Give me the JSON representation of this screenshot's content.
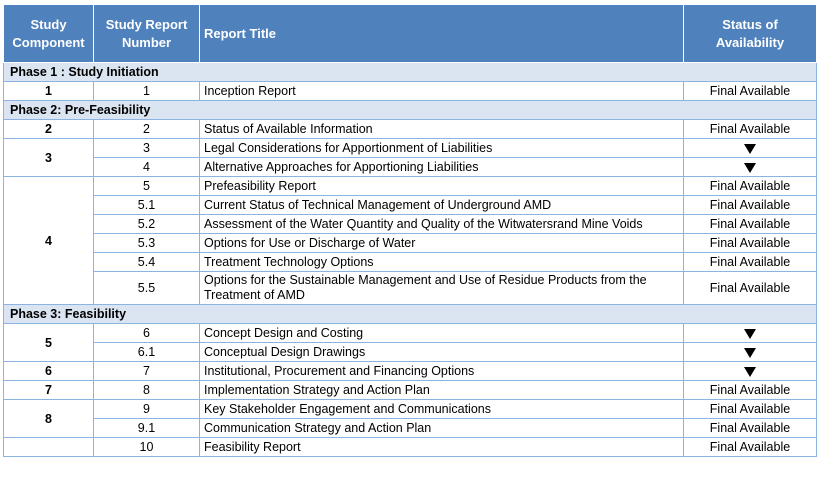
{
  "header": {
    "study_component": "Study Component",
    "study_report_number": "Study Report Number",
    "report_title": "Report Title",
    "status": "Status of Availability"
  },
  "phases": [
    {
      "label": "Phase 1 : Study Initiation",
      "groups": [
        {
          "component": "1",
          "rows": [
            {
              "number": "1",
              "title": "Inception Report",
              "status": "Final Available"
            }
          ]
        }
      ]
    },
    {
      "label": "Phase 2: Pre-Feasibility",
      "groups": [
        {
          "component": "2",
          "rows": [
            {
              "number": "2",
              "title": "Status of Available Information",
              "status": "Final Available"
            }
          ]
        },
        {
          "component": "3",
          "rows": [
            {
              "number": "3",
              "title": "Legal Considerations for Apportionment of Liabilities",
              "status": "",
              "status_icon": "down-triangle-icon"
            },
            {
              "number": "4",
              "title": "Alternative Approaches for Apportioning Liabilities",
              "status": "",
              "status_icon": "down-triangle-icon"
            }
          ]
        },
        {
          "component": "4",
          "rows": [
            {
              "number": "5",
              "title": "Prefeasibility Report",
              "status": "Final Available"
            },
            {
              "number": "5.1",
              "title": "Current Status of Technical Management of Underground AMD",
              "status": "Final Available"
            },
            {
              "number": "5.2",
              "title": "Assessment of the Water Quantity and Quality of the Witwatersrand Mine Voids",
              "status": "Final Available"
            },
            {
              "number": "5.3",
              "title": "Options for Use or Discharge of Water",
              "status": "Final Available"
            },
            {
              "number": "5.4",
              "title": "Treatment Technology Options",
              "status": "Final Available"
            },
            {
              "number": "5.5",
              "title": "Options for the Sustainable Management and Use of Residue Products from the Treatment of AMD",
              "status": "Final Available"
            }
          ]
        }
      ]
    },
    {
      "label": "Phase 3: Feasibility",
      "groups": [
        {
          "component": "5",
          "rows": [
            {
              "number": "6",
              "title": "Concept Design and Costing",
              "status": "",
              "status_icon": "down-triangle-icon"
            },
            {
              "number": "6.1",
              "title": "Conceptual Design Drawings",
              "status": "",
              "status_icon": "down-triangle-icon"
            }
          ]
        },
        {
          "component": "6",
          "rows": [
            {
              "number": "7",
              "title": "Institutional, Procurement and Financing Options",
              "status": "",
              "status_icon": "down-triangle-icon"
            }
          ]
        },
        {
          "component": "7",
          "rows": [
            {
              "number": "8",
              "title": "Implementation Strategy and Action Plan",
              "status": "Final Available"
            }
          ]
        },
        {
          "component": "8",
          "rows": [
            {
              "number": "9",
              "title": "Key Stakeholder Engagement and Communications",
              "status": "Final Available"
            },
            {
              "number": "9.1",
              "title": "Communication Strategy and Action Plan",
              "status": "Final Available"
            }
          ]
        },
        {
          "component": "",
          "rows": [
            {
              "number": "10",
              "title": "Feasibility Report",
              "status": "Final Available"
            }
          ]
        }
      ]
    }
  ],
  "colors": {
    "header_bg": "#4f81bd",
    "phase_bg": "#dbe5f1",
    "border": "#8db3e2"
  }
}
